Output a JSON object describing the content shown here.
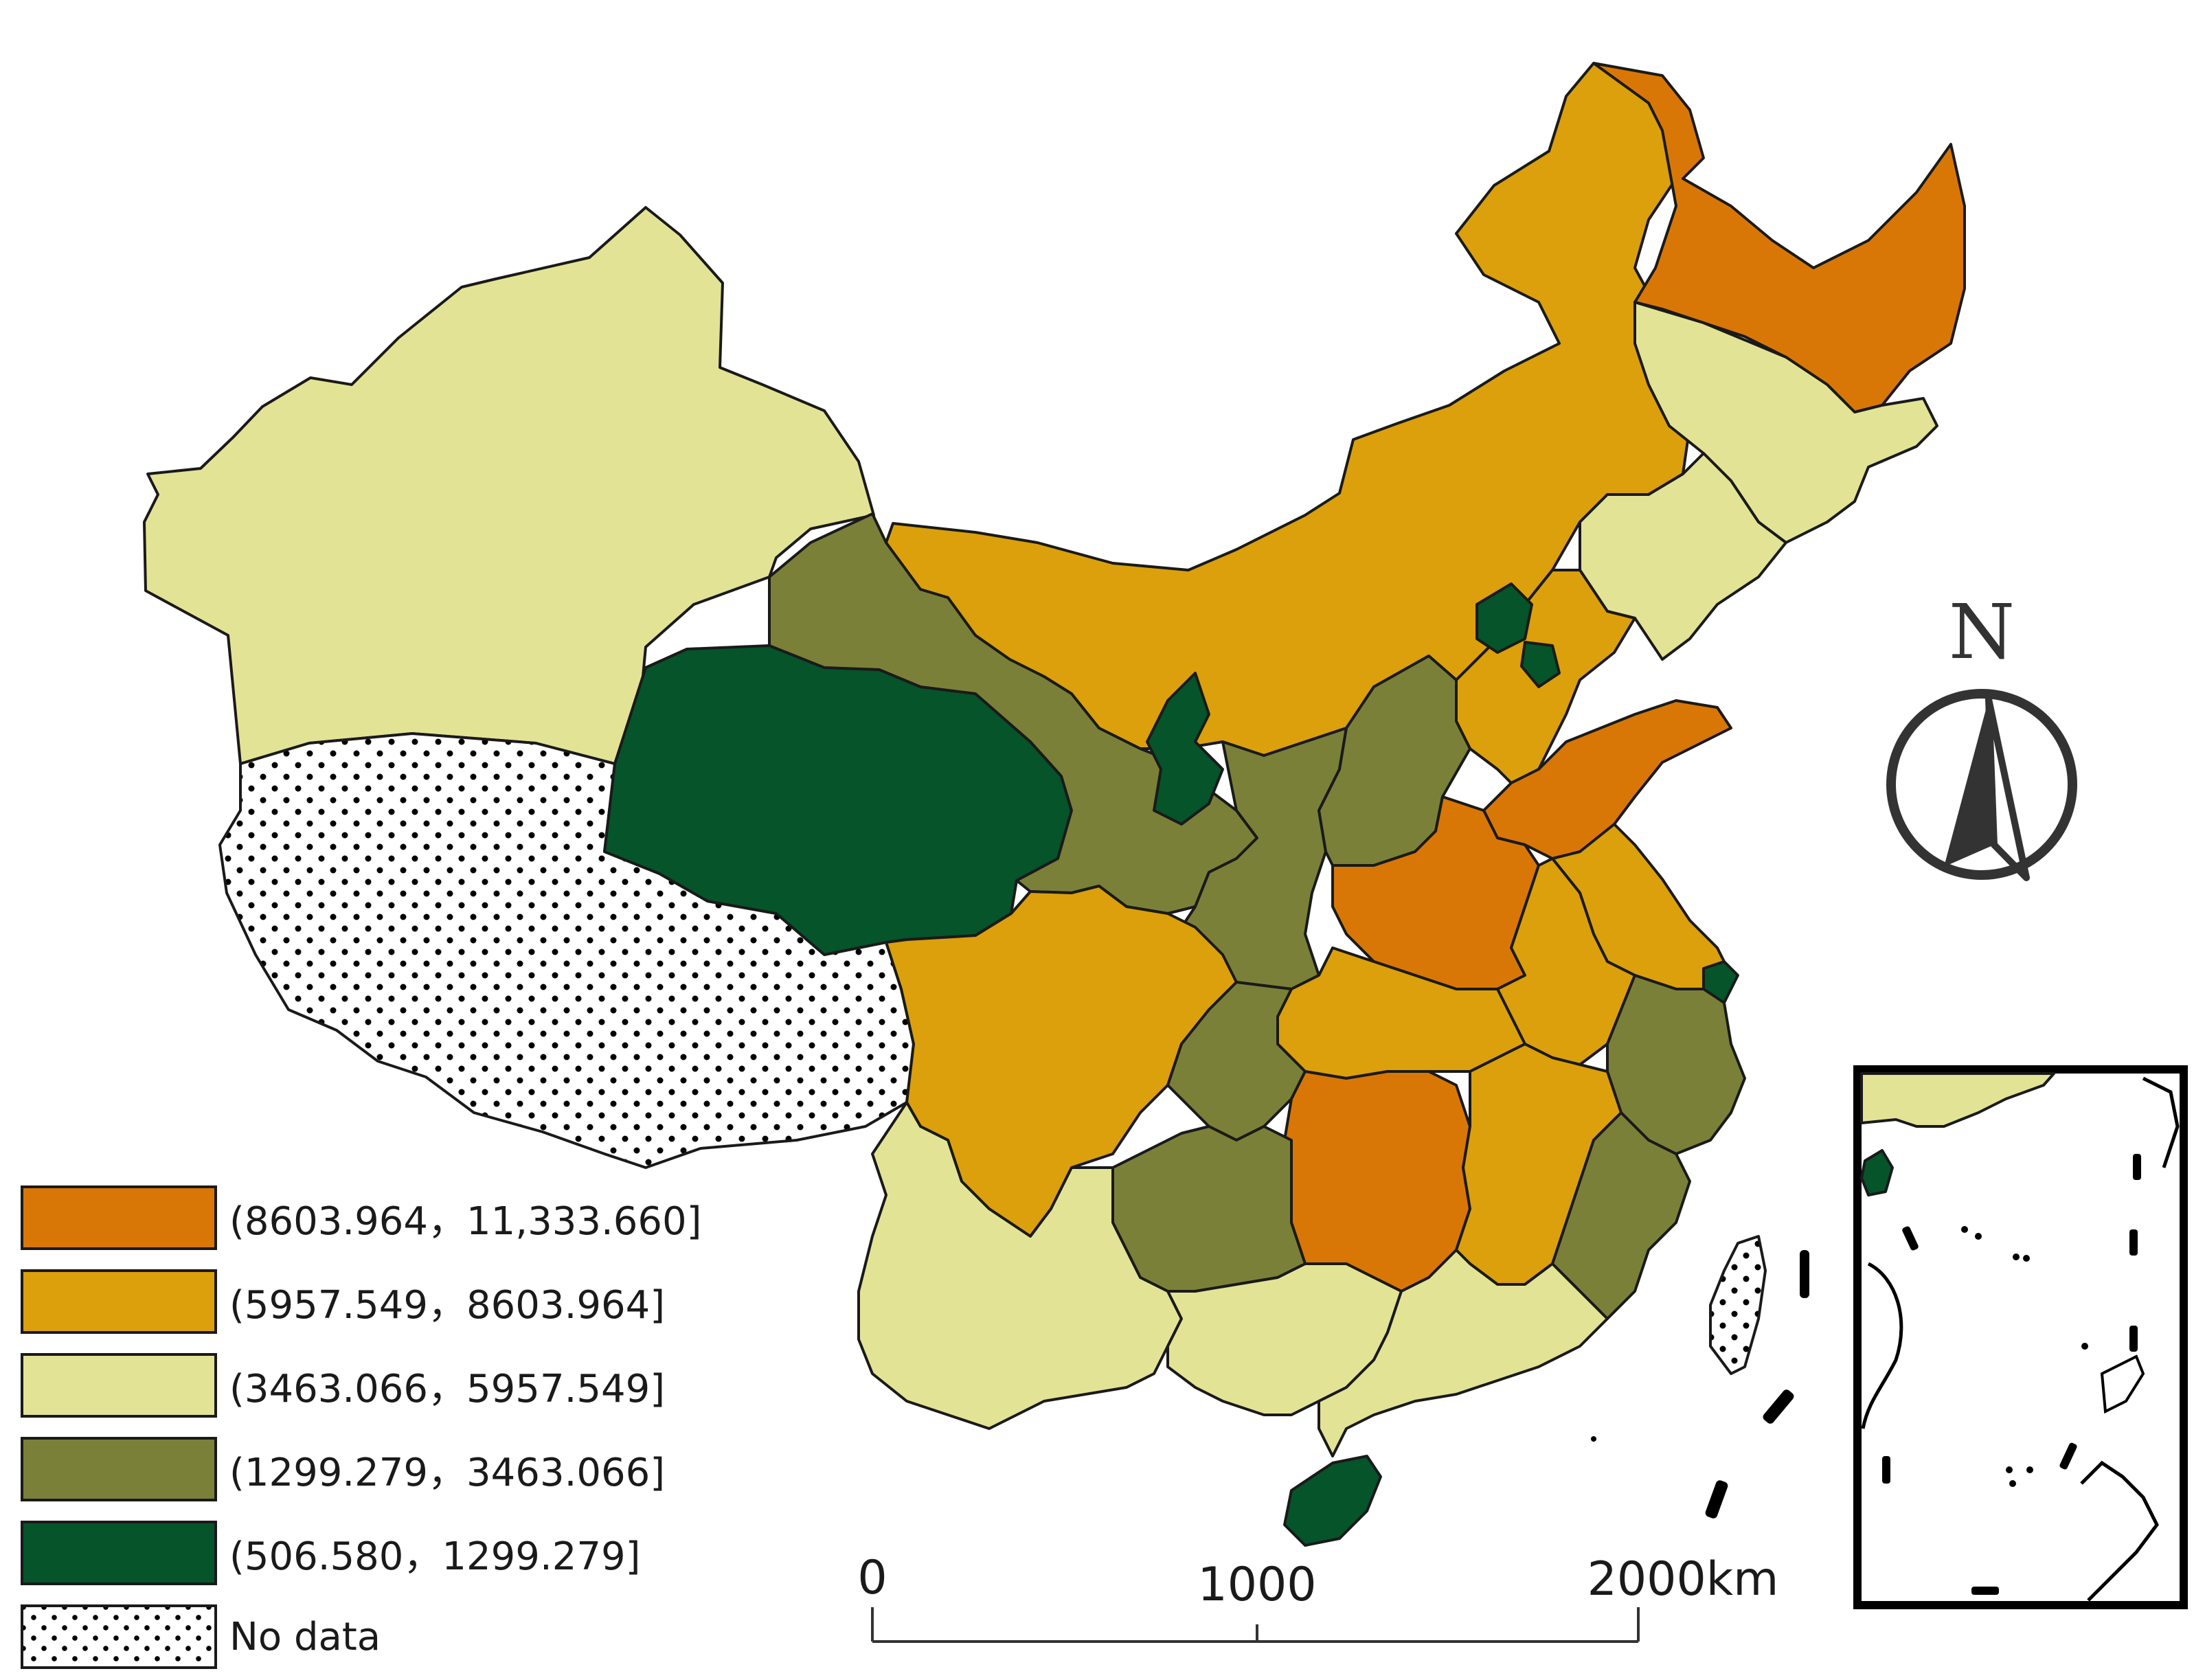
{
  "colors": {
    "class1": "#d97706",
    "class2": "#dba00b",
    "class3": "#e3e396",
    "class4": "#7b8038",
    "class5": "#05542a",
    "no_data": "dotted"
  },
  "legend": [
    {
      "label": "(8603.964，11,333.660]",
      "color": "#d97706"
    },
    {
      "label": "(5957.549，8603.964]",
      "color": "#dba00b"
    },
    {
      "label": "(3463.066，5957.549]",
      "color": "#e3e396"
    },
    {
      "label": "(1299.279，3463.066]",
      "color": "#7b8038"
    },
    {
      "label": "(506.580，1299.279]",
      "color": "#05542a"
    },
    {
      "label": "No data",
      "color": "dotted"
    }
  ],
  "north_arrow": {
    "letter": "N",
    "icon": "north-arrow-icon"
  },
  "scale_bar": {
    "ticks": [
      "0",
      "1000",
      "2000km"
    ]
  }
}
